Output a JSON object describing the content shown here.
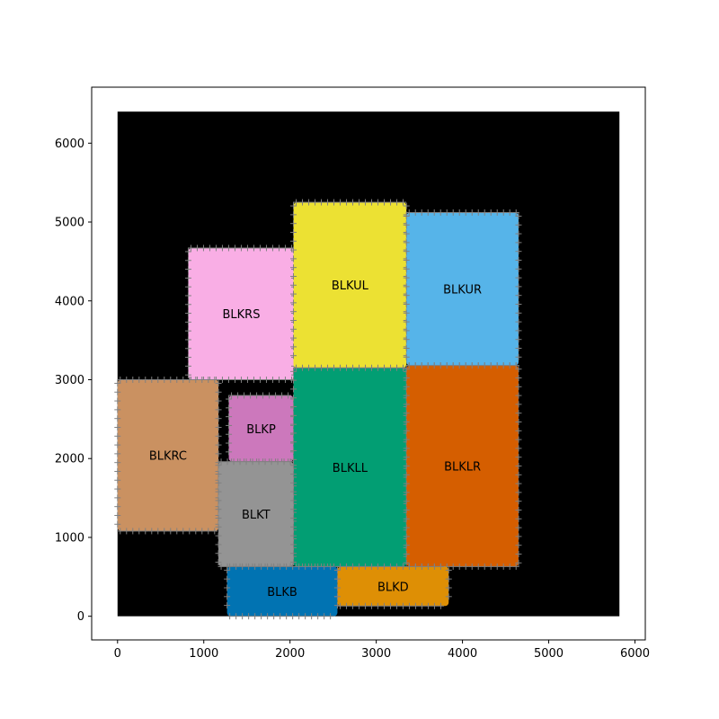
{
  "chart_data": {
    "type": "floorplan",
    "title": "",
    "xlabel": "",
    "ylabel": "",
    "xlim": [
      -300,
      6120
    ],
    "ylim": [
      -300,
      6710
    ],
    "x_ticks": [
      0,
      1000,
      2000,
      3000,
      4000,
      5000,
      6000
    ],
    "y_ticks": [
      0,
      1000,
      2000,
      3000,
      4000,
      5000,
      6000
    ],
    "grid": false,
    "die": {
      "x0": 0,
      "y0": 0,
      "x1": 5820,
      "y1": 6400,
      "color": "#000000"
    },
    "pin_color": "#808080",
    "blocks": [
      {
        "name": "BLKRS",
        "x0": 820,
        "y0": 3000,
        "x1": 2050,
        "y1": 4670,
        "color": "#F9AEE5"
      },
      {
        "name": "BLKUL",
        "x0": 2040,
        "y0": 3150,
        "x1": 3350,
        "y1": 5250,
        "color": "#ECE133"
      },
      {
        "name": "BLKUR",
        "x0": 3350,
        "y0": 3180,
        "x1": 4650,
        "y1": 5120,
        "color": "#56B4E9"
      },
      {
        "name": "BLKRC",
        "x0": 0,
        "y0": 1080,
        "x1": 1170,
        "y1": 3000,
        "color": "#CA9161"
      },
      {
        "name": "BLKP",
        "x0": 1290,
        "y0": 1960,
        "x1": 2040,
        "y1": 2800,
        "color": "#CC78BC"
      },
      {
        "name": "BLKLL",
        "x0": 2040,
        "y0": 630,
        "x1": 3350,
        "y1": 3150,
        "color": "#029E73"
      },
      {
        "name": "BLKLR",
        "x0": 3350,
        "y0": 630,
        "x1": 4650,
        "y1": 3180,
        "color": "#D55E00"
      },
      {
        "name": "BLKT",
        "x0": 1170,
        "y0": 630,
        "x1": 2040,
        "y1": 1960,
        "color": "#949494"
      },
      {
        "name": "BLKB",
        "x0": 1270,
        "y0": 0,
        "x1": 2550,
        "y1": 630,
        "color": "#0173B2"
      },
      {
        "name": "BLKD",
        "x0": 2550,
        "y0": 130,
        "x1": 3840,
        "y1": 630,
        "color": "#DE8F05"
      }
    ]
  }
}
